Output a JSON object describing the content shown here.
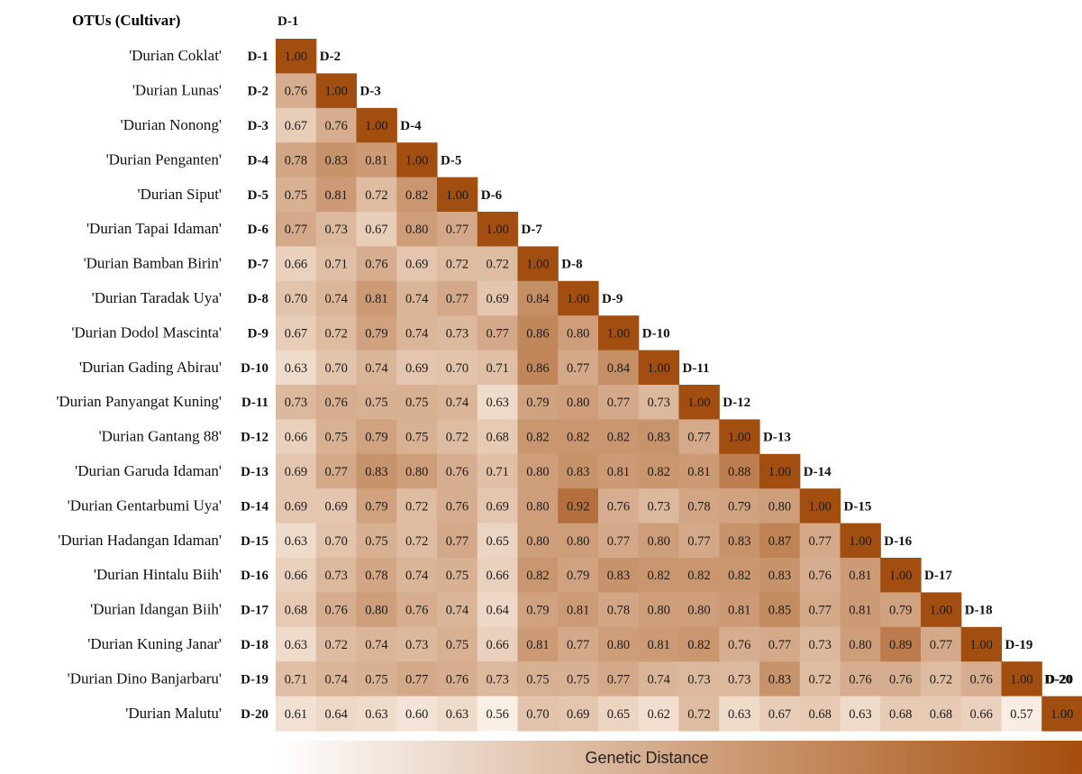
{
  "chart_data": {
    "type": "heatmap",
    "title": "OTUs (Cultivar)",
    "legend_label": "Genetic Distance",
    "colors": {
      "low": "#fbf1e8",
      "high": "#a24e10",
      "legend_start": "#ffffff",
      "legend_end": "#a54e0c"
    },
    "codes": [
      "D-1",
      "D-2",
      "D-3",
      "D-4",
      "D-5",
      "D-6",
      "D-7",
      "D-8",
      "D-9",
      "D-10",
      "D-11",
      "D-12",
      "D-13",
      "D-14",
      "D-15",
      "D-16",
      "D-17",
      "D-18",
      "D-19",
      "D-20"
    ],
    "cultivars": [
      "'Durian Coklat'",
      "'Durian Lunas'",
      "'Durian Nonong'",
      "'Durian Penganten'",
      "'Durian Siput'",
      "'Durian Tapai Idaman'",
      "'Durian Bamban Birin'",
      "'Durian Taradak Uya'",
      "'Durian Dodol Mascinta'",
      "'Durian Gading Abirau'",
      "'Durian Panyangat Kuning'",
      "'Durian Gantang 88'",
      "'Durian Garuda Idaman'",
      "'Durian Gentarbumi Uya'",
      "'Durian Hadangan Idaman'",
      "'Durian Hintalu Biih'",
      "'Durian Idangan Biih'",
      "'Durian Kuning Janar'",
      "'Durian Dino Banjarbaru'",
      "'Durian Malutu'"
    ],
    "matrix": [
      [
        "1.00"
      ],
      [
        "0.76",
        "1.00"
      ],
      [
        "0.67",
        "0.76",
        "1.00"
      ],
      [
        "0.78",
        "0.83",
        "0.81",
        "1.00"
      ],
      [
        "0.75",
        "0.81",
        "0.72",
        "0.82",
        "1.00"
      ],
      [
        "0.77",
        "0.73",
        "0.67",
        "0.80",
        "0.77",
        "1.00"
      ],
      [
        "0.66",
        "0.71",
        "0.76",
        "0.69",
        "0.72",
        "0.72",
        "1.00"
      ],
      [
        "0.70",
        "0.74",
        "0.81",
        "0.74",
        "0.77",
        "0.69",
        "0.84",
        "1.00"
      ],
      [
        "0.67",
        "0.72",
        "0.79",
        "0.74",
        "0.73",
        "0.77",
        "0.86",
        "0.80",
        "1.00"
      ],
      [
        "0.63",
        "0.70",
        "0.74",
        "0.69",
        "0.70",
        "0.71",
        "0.86",
        "0.77",
        "0.84",
        "1.00"
      ],
      [
        "0.73",
        "0.76",
        "0.75",
        "0.75",
        "0.74",
        "0.63",
        "0.79",
        "0.80",
        "0.77",
        "0.73",
        "1.00"
      ],
      [
        "0.66",
        "0.75",
        "0.79",
        "0.75",
        "0.72",
        "0.68",
        "0.82",
        "0.82",
        "0.82",
        "0.83",
        "0.77",
        "1.00"
      ],
      [
        "0.69",
        "0.77",
        "0.83",
        "0.80",
        "0.76",
        "0.71",
        "0.80",
        "0.83",
        "0.81",
        "0.82",
        "0.81",
        "0.88",
        "1.00"
      ],
      [
        "0.69",
        "0.69",
        "0.79",
        "0.72",
        "0.76",
        "0.69",
        "0.80",
        "0.92",
        "0.76",
        "0.73",
        "0.78",
        "0.79",
        "0.80",
        "1.00"
      ],
      [
        "0.63",
        "0.70",
        "0.75",
        "0.72",
        "0.77",
        "0.65",
        "0.80",
        "0.80",
        "0.77",
        "0.80",
        "0.77",
        "0.83",
        "0.87",
        "0.77",
        "1.00"
      ],
      [
        "0.66",
        "0.73",
        "0.78",
        "0.74",
        "0.75",
        "0.66",
        "0.82",
        "0.79",
        "0.83",
        "0.82",
        "0.82",
        "0.82",
        "0.83",
        "0.76",
        "0.81",
        "1.00"
      ],
      [
        "0.68",
        "0.76",
        "0.80",
        "0.76",
        "0.74",
        "0.64",
        "0.79",
        "0.81",
        "0.78",
        "0.80",
        "0.80",
        "0.81",
        "0.85",
        "0.77",
        "0.81",
        "0.79",
        "1.00"
      ],
      [
        "0.63",
        "0.72",
        "0.74",
        "0.73",
        "0.75",
        "0.66",
        "0.81",
        "0.77",
        "0.80",
        "0.81",
        "0.82",
        "0.76",
        "0.77",
        "0.73",
        "0.80",
        "0.89",
        "0.77",
        "1.00"
      ],
      [
        "0.71",
        "0.74",
        "0.75",
        "0.77",
        "0.76",
        "0.73",
        "0.75",
        "0.75",
        "0.77",
        "0.74",
        "0.73",
        "0.73",
        "0.83",
        "0.72",
        "0.76",
        "0.76",
        "0.72",
        "0.76",
        "1.00"
      ],
      [
        "0.61",
        "0.64",
        "0.63",
        "0.60",
        "0.63",
        "0.56",
        "0.70",
        "0.69",
        "0.65",
        "0.62",
        "0.72",
        "0.63",
        "0.67",
        "0.68",
        "0.63",
        "0.68",
        "0.68",
        "0.66",
        "0.57",
        "1.00"
      ]
    ]
  }
}
